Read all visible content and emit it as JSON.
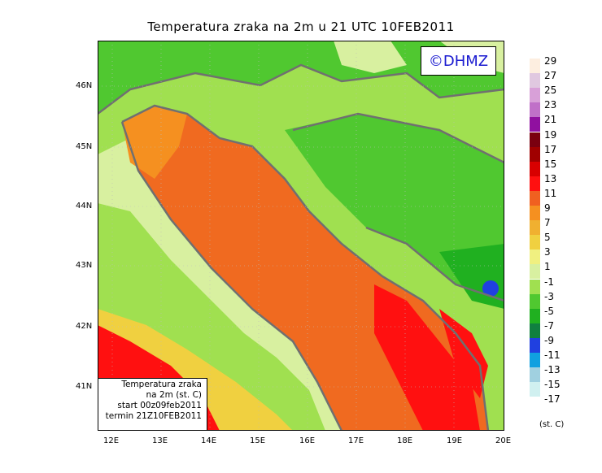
{
  "title": "Temperatura zraka na 2m u 21 UTC 10FEB2011",
  "logo": "©DHMZ",
  "info": {
    "line1": "Temperatura zraka",
    "line2": "na 2m (st. C)",
    "line3": "start 00z09feb2011",
    "line4": "termin 21Z10FEB2011"
  },
  "lat_labels": [
    "46N",
    "45N",
    "44N",
    "43N",
    "42N",
    "41N"
  ],
  "lon_labels": [
    "12E",
    "13E",
    "14E",
    "15E",
    "16E",
    "17E",
    "18E",
    "19E",
    "20E"
  ],
  "legend": {
    "unit": "(st. C)",
    "labels": [
      "29",
      "27",
      "25",
      "23",
      "21",
      "19",
      "17",
      "15",
      "13",
      "11",
      "9",
      "7",
      "5",
      "3",
      "1",
      "-1",
      "-3",
      "-5",
      "-7",
      "-9",
      "-11",
      "-13",
      "-15",
      "-17"
    ],
    "colors": [
      "#fdeee0",
      "#e0c8e0",
      "#d8a0d8",
      "#c070c8",
      "#9010a0",
      "#7a0010",
      "#a00000",
      "#d80000",
      "#ff1010",
      "#f06020",
      "#f59020",
      "#f0b030",
      "#f0d040",
      "#f0f080",
      "#d8f0a0",
      "#a0e050",
      "#50c830",
      "#20b020",
      "#108040",
      "#2040e0",
      "#10a0e0",
      "#a0d0e0",
      "#d0f0f0",
      "#ffffff"
    ]
  },
  "map_colors": {
    "sea": "#f06a20",
    "coast_light": "#f5b040",
    "green_light": "#d8f0a0",
    "green_mid": "#a0e050",
    "green_dark": "#50c830",
    "green_deep": "#20b020",
    "red": "#ff1010",
    "yellow": "#f0d040",
    "blue": "#2040e0",
    "border": "#707070"
  }
}
